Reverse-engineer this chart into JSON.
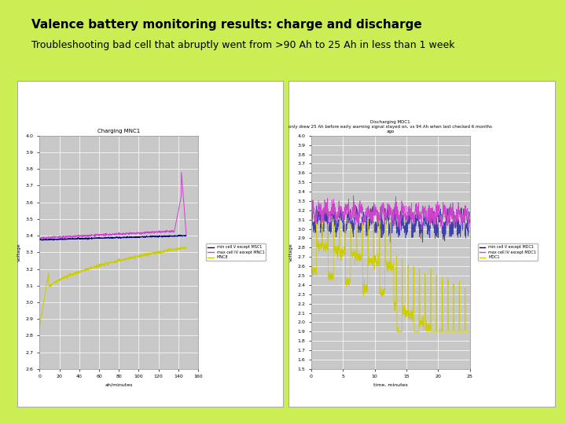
{
  "background_color": "#ccee55",
  "title_main": "Valence battery monitoring results: charge and discharge",
  "title_sub": "Troubleshooting bad cell that abruptly went from >90 Ah to 25 Ah in less than 1 week",
  "title_main_fontsize": 11,
  "title_sub_fontsize": 9,
  "left_chart": {
    "title": "Charging MNC1",
    "xlabel": "ah/minutes",
    "ylabel": "voltage",
    "xlim": [
      0,
      160
    ],
    "ylim": [
      2.6,
      4.0
    ],
    "yticks": [
      2.6,
      2.7,
      2.8,
      2.9,
      3.0,
      3.1,
      3.2,
      3.3,
      3.4,
      3.5,
      3.6,
      3.7,
      3.8,
      3.9,
      4.0
    ],
    "xticks": [
      0,
      20,
      40,
      60,
      80,
      100,
      120,
      140,
      160
    ],
    "legend": [
      "min cell V except MSC1",
      "max cell IV except MNC1",
      "MNC8"
    ],
    "legend_colors": [
      "#000080",
      "#cc44cc",
      "#cccc00"
    ]
  },
  "right_chart": {
    "title": "Discharging MDC1",
    "subtitle": "only drew 25 Ah before early warning signal stayed on, vs 94 Ah when last checked 6 months\nago",
    "xlabel": "time, minutes",
    "ylabel": "voltage",
    "xlim": [
      0,
      25
    ],
    "ylim": [
      1.5,
      4.0
    ],
    "yticks": [
      1.5,
      1.6,
      1.7,
      1.8,
      1.9,
      2.0,
      2.1,
      2.2,
      2.3,
      2.4,
      2.5,
      2.6,
      2.7,
      2.8,
      2.9,
      3.0,
      3.1,
      3.2,
      3.3,
      3.4,
      3.5,
      3.6,
      3.7,
      3.8,
      3.9,
      4.0
    ],
    "xticks": [
      0,
      5,
      10,
      15,
      20,
      25
    ],
    "legend": [
      "min cell V except MDC1",
      "max cell IV except MDC1",
      "MDC1"
    ],
    "legend_colors": [
      "#000080",
      "#cc44cc",
      "#cccc00"
    ]
  }
}
